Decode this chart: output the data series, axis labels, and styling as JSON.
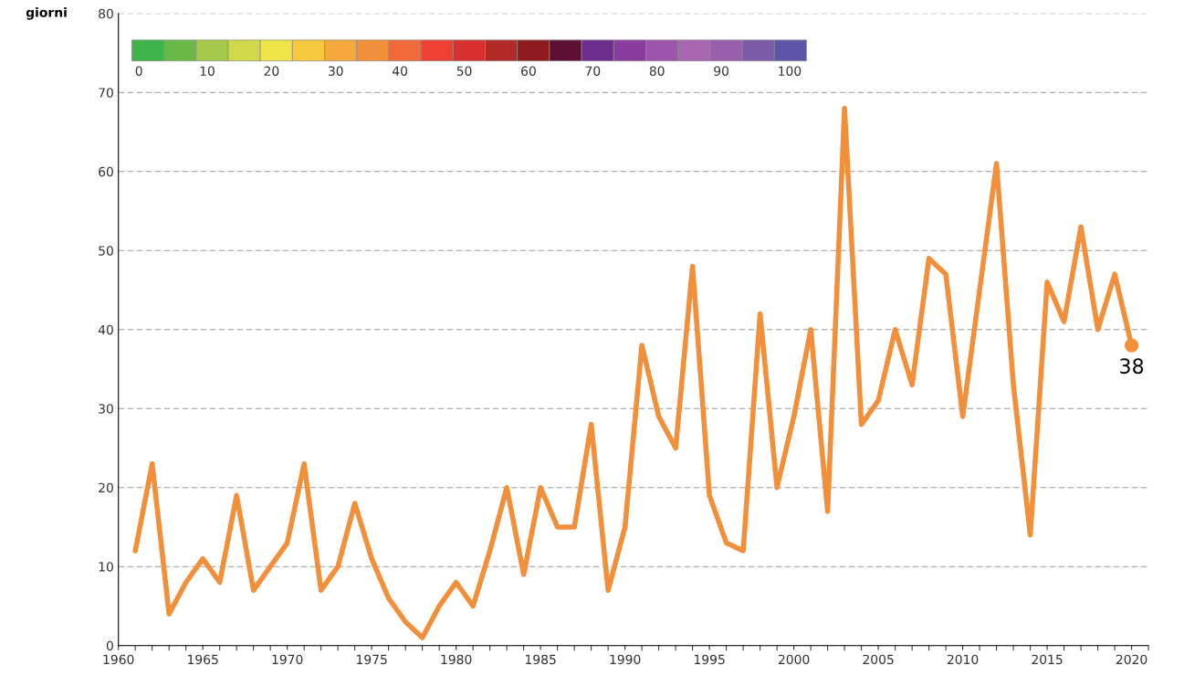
{
  "chart_data": {
    "type": "line",
    "ylabel": "giorni",
    "x": [
      1961,
      1962,
      1963,
      1964,
      1965,
      1966,
      1967,
      1968,
      1969,
      1970,
      1971,
      1972,
      1973,
      1974,
      1975,
      1976,
      1977,
      1978,
      1979,
      1980,
      1981,
      1982,
      1983,
      1984,
      1985,
      1986,
      1987,
      1988,
      1989,
      1990,
      1991,
      1992,
      1993,
      1994,
      1995,
      1996,
      1997,
      1998,
      1999,
      2000,
      2001,
      2002,
      2003,
      2004,
      2005,
      2006,
      2007,
      2008,
      2009,
      2010,
      2011,
      2012,
      2013,
      2014,
      2015,
      2016,
      2017,
      2018,
      2019,
      2020
    ],
    "series": [
      {
        "values": [
          12,
          23,
          4,
          8,
          11,
          8,
          19,
          7,
          10,
          13,
          23,
          7,
          10,
          18,
          11,
          6,
          3,
          1,
          5,
          8,
          5,
          12,
          20,
          9,
          20,
          15,
          15,
          28,
          7,
          15,
          38,
          29,
          25,
          48,
          19,
          13,
          12,
          42,
          20,
          29,
          40,
          17,
          68,
          28,
          31,
          40,
          33,
          49,
          47,
          29,
          45,
          61,
          33,
          14,
          46,
          41,
          53,
          40,
          47,
          38
        ],
        "color": "#f28f3a"
      }
    ],
    "annotations": [
      {
        "text": "38",
        "x": 2020,
        "y": 38
      },
      "0",
      "10",
      "20",
      "30",
      "40",
      "50",
      "60",
      "70",
      "80",
      "90",
      "100"
    ],
    "colors": [
      "#3cb44a",
      "#6ab845",
      "#a5c948",
      "#cfd94a",
      "#efe54a",
      "#f6c83e",
      "#f5a93c",
      "#f28f3a",
      "#ef6a38",
      "#ec4034",
      "#d8302e",
      "#b02a28",
      "#8e1c1e",
      "#5e0f34",
      "#6e2d8e",
      "#8a3c9e",
      "#9d55ab",
      "#a866b0",
      "#9a5fac",
      "#7b5aa8",
      "#5c56a8"
    ],
    "xlim": [
      1960,
      2021
    ],
    "xticks": [
      1960,
      1965,
      1970,
      1975,
      1980,
      1985,
      1990,
      1995,
      2000,
      2005,
      2010,
      2015,
      2020
    ],
    "ylim": [
      0,
      80
    ],
    "yticks": [
      0,
      10,
      20,
      30,
      40,
      50,
      60,
      70,
      80
    ],
    "grid": "y",
    "marker": "none",
    "line_style": "solid"
  }
}
